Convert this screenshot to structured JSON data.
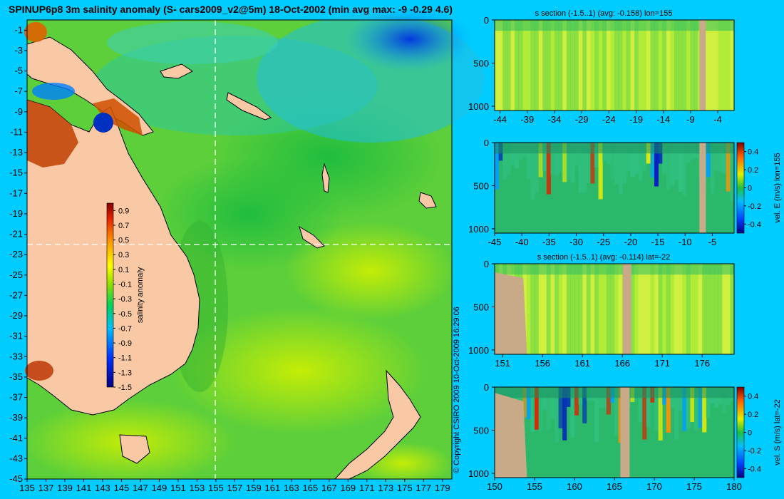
{
  "title": "SPINUP6p8 3m salinity anomaly (S- cars2009_v2@5m) 18-Oct-2002 (min avg max: -9 -0.29 4.6)",
  "copyright": "© Copyright CSIRO 2009   10-Oct-2009 16:29:06",
  "colors": {
    "background": "#00ccff",
    "land": "#f9c8a5",
    "section_land": "#c8aa88",
    "guide": "#ffffff"
  },
  "map": {
    "lon_ticks": [
      "135",
      "137",
      "139",
      "141",
      "143",
      "145",
      "147",
      "149",
      "151",
      "153",
      "155",
      "157",
      "159",
      "161",
      "163",
      "165",
      "167",
      "169",
      "171",
      "173",
      "175",
      "177",
      "179"
    ],
    "lat_ticks": [
      "-1",
      "-3",
      "-5",
      "-7",
      "-9",
      "-11",
      "-13",
      "-15",
      "-17",
      "-19",
      "-21",
      "-23",
      "-25",
      "-27",
      "-29",
      "-31",
      "-33",
      "-35",
      "-37",
      "-39",
      "-41",
      "-43",
      "-45"
    ],
    "lon_range": [
      135,
      180
    ],
    "lat_range": [
      -45,
      0
    ],
    "section_lon": 155,
    "section_lat": -22,
    "colorbar": {
      "label": "salinity anomaly",
      "ticks": [
        "0.9",
        "0.7",
        "0.5",
        "0.3",
        "0.1",
        "-0.1",
        "-0.3",
        "-0.5",
        "-0.7",
        "-0.9",
        "-1.1",
        "-1.3",
        "-1.5"
      ],
      "range": [
        -1.5,
        1.0
      ]
    }
  },
  "panels": [
    {
      "title": "s section (-1.5..1) (avg: -0.158) lon=155",
      "x_ticks": [
        "-44",
        "-39",
        "-34",
        "-29",
        "-24",
        "-19",
        "-14",
        "-9",
        "-4"
      ],
      "y_ticks": [
        "0",
        "500",
        "1000"
      ],
      "x_range": [
        -45,
        -1
      ],
      "field": "salinity",
      "side_label": ""
    },
    {
      "title": "",
      "x_ticks": [
        "-45",
        "-40",
        "-35",
        "-30",
        "-25",
        "-20",
        "-15",
        "-10",
        "-5"
      ],
      "y_ticks": [
        "0",
        "500",
        "1000"
      ],
      "x_range": [
        -45,
        -1
      ],
      "field": "velocity",
      "side_label": "vel. E (m/s) lon=155",
      "cbar_ticks": [
        "0.4",
        "0.2",
        "0",
        "-0.2",
        "-0.4"
      ]
    },
    {
      "title": "s section (-1.5..1) (avg: -0.114) lat=-22",
      "x_ticks": [
        "151",
        "156",
        "161",
        "166",
        "171",
        "176"
      ],
      "y_ticks": [
        "0",
        "500",
        "1000"
      ],
      "x_range": [
        150,
        180
      ],
      "field": "salinity",
      "side_label": ""
    },
    {
      "title": "",
      "x_ticks": [
        "150",
        "155",
        "160",
        "165",
        "170",
        "175",
        "180"
      ],
      "y_ticks": [
        "0",
        "500",
        "1000"
      ],
      "x_range": [
        150,
        180
      ],
      "field": "velocity",
      "side_label": "vel. S (m/s) lat=-22",
      "cbar_ticks": [
        "0.4",
        "0.2",
        "0",
        "-0.2",
        "-0.4"
      ]
    }
  ]
}
